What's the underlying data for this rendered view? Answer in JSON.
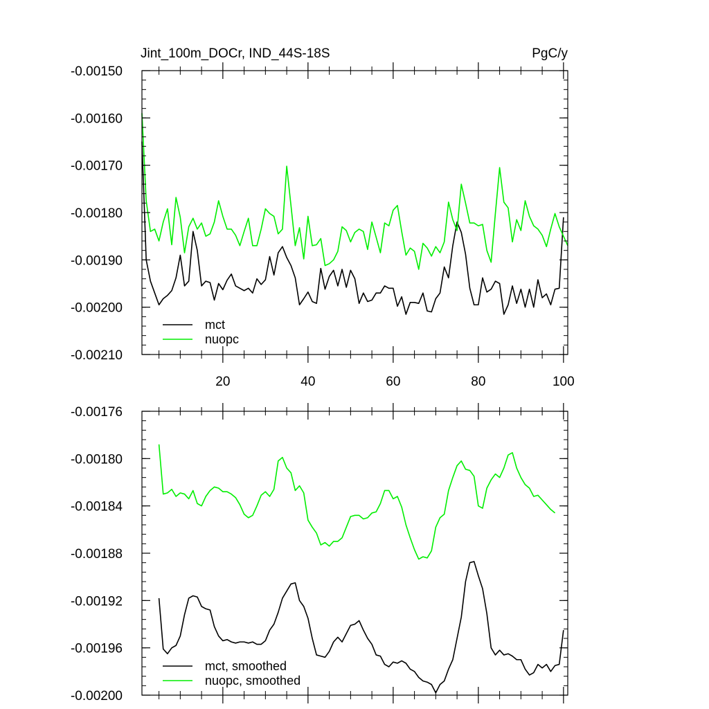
{
  "figure": {
    "title_left": "Jint_100m_DOCr, IND_44S-18S",
    "title_right": "PgC/y"
  },
  "chart_data": [
    {
      "type": "line",
      "title": "Jint_100m_DOCr, IND_44S-18S",
      "units": "PgC/y",
      "xlim": [
        1,
        101
      ],
      "ylim": [
        -0.0021,
        -0.0015
      ],
      "xticks": [
        20,
        40,
        60,
        80,
        100
      ],
      "xtick_labels": [
        "20",
        "40",
        "60",
        "80",
        "100"
      ],
      "yticks": [
        -0.0015,
        -0.0016,
        -0.0017,
        -0.0018,
        -0.0019,
        -0.002,
        -0.0021
      ],
      "ytick_labels": [
        "-0.00150",
        "-0.00160",
        "-0.00170",
        "-0.00180",
        "-0.00190",
        "-0.00200",
        "-0.00210"
      ],
      "grid": false,
      "legend_position": "bottom-left",
      "x_start": 1,
      "series": [
        {
          "name": "mct",
          "color": "#000000",
          "values": [
            -0.00165,
            -0.0019,
            -0.001945,
            -0.00197,
            -0.001995,
            -0.001982,
            -0.001975,
            -0.001965,
            -0.001938,
            -0.00189,
            -0.001955,
            -0.001945,
            -0.00184,
            -0.00188,
            -0.001955,
            -0.001945,
            -0.001948,
            -0.001985,
            -0.00195,
            -0.001963,
            -0.001943,
            -0.00193,
            -0.001955,
            -0.00196,
            -0.001965,
            -0.00196,
            -0.00197,
            -0.00194,
            -0.001952,
            -0.001942,
            -0.001893,
            -0.001932,
            -0.001885,
            -0.001872,
            -0.001895,
            -0.001912,
            -0.001938,
            -0.001995,
            -0.001982,
            -0.001968,
            -0.001988,
            -0.001992,
            -0.001918,
            -0.001962,
            -0.001935,
            -0.001922,
            -0.001955,
            -0.00192,
            -0.001958,
            -0.001922,
            -0.00194,
            -0.001992,
            -0.00197,
            -0.001988,
            -0.001985,
            -0.00197,
            -0.00197,
            -0.001955,
            -0.00196,
            -0.00196,
            -0.001998,
            -0.001978,
            -0.002015,
            -0.00199,
            -0.00199,
            -0.001992,
            -0.00197,
            -0.002008,
            -0.00201,
            -0.001982,
            -0.00197,
            -0.001915,
            -0.001938,
            -0.00187,
            -0.00182,
            -0.001842,
            -0.001888,
            -0.00196,
            -0.001995,
            -0.001995,
            -0.001938,
            -0.001968,
            -0.001962,
            -0.001945,
            -0.00195,
            -0.002015,
            -0.001995,
            -0.001955,
            -0.001992,
            -0.001962,
            -0.002,
            -0.001962,
            -0.002,
            -0.001942,
            -0.00198,
            -0.001972,
            -0.001995,
            -0.001962,
            -0.00196,
            -0.00181
          ]
        },
        {
          "name": "nuopc",
          "color": "#00ee00",
          "values": [
            -0.00159,
            -0.001775,
            -0.00184,
            -0.001835,
            -0.00186,
            -0.00182,
            -0.001792,
            -0.001868,
            -0.001768,
            -0.00181,
            -0.001885,
            -0.00183,
            -0.001812,
            -0.001835,
            -0.001822,
            -0.00185,
            -0.001845,
            -0.00182,
            -0.001775,
            -0.001808,
            -0.001835,
            -0.001835,
            -0.001848,
            -0.00187,
            -0.00184,
            -0.001812,
            -0.00187,
            -0.00187,
            -0.001835,
            -0.001792,
            -0.001802,
            -0.001808,
            -0.001845,
            -0.001835,
            -0.001702,
            -0.001785,
            -0.00187,
            -0.001832,
            -0.001898,
            -0.001808,
            -0.00187,
            -0.001868,
            -0.001855,
            -0.001912,
            -0.001908,
            -0.0019,
            -0.001882,
            -0.00183,
            -0.001838,
            -0.001862,
            -0.001842,
            -0.001835,
            -0.00184,
            -0.001878,
            -0.00182,
            -0.001852,
            -0.001885,
            -0.001822,
            -0.001828,
            -0.001795,
            -0.001785,
            -0.00184,
            -0.00189,
            -0.001875,
            -0.001882,
            -0.00192,
            -0.001865,
            -0.001875,
            -0.001892,
            -0.001872,
            -0.001885,
            -0.001862,
            -0.001778,
            -0.001815,
            -0.001838,
            -0.00174,
            -0.00178,
            -0.001822,
            -0.001822,
            -0.001828,
            -0.001825,
            -0.00188,
            -0.001905,
            -0.001802,
            -0.001705,
            -0.001778,
            -0.00179,
            -0.001862,
            -0.001815,
            -0.001838,
            -0.001775,
            -0.001808,
            -0.001828,
            -0.001835,
            -0.001848,
            -0.001872,
            -0.001835,
            -0.001802,
            -0.00183,
            -0.00185,
            -0.00187
          ]
        }
      ]
    },
    {
      "type": "line",
      "xlim": [
        1,
        101
      ],
      "ylim": [
        -0.002,
        -0.00176
      ],
      "xticks": [
        20,
        40,
        60,
        80,
        100
      ],
      "yticks": [
        -0.00176,
        -0.0018,
        -0.00184,
        -0.00188,
        -0.00192,
        -0.00196,
        -0.002
      ],
      "ytick_labels": [
        "-0.00176",
        "-0.00180",
        "-0.00184",
        "-0.00188",
        "-0.00192",
        "-0.00196",
        "-0.00200"
      ],
      "grid": false,
      "legend_position": "bottom-left",
      "x_start": 5,
      "series": [
        {
          "name": "mct, smoothed",
          "color": "#000000",
          "values": [
            -0.001918,
            -0.001961,
            -0.001965,
            -0.00196,
            -0.001958,
            -0.00195,
            -0.001932,
            -0.001918,
            -0.001916,
            -0.001917,
            -0.001925,
            -0.001927,
            -0.001928,
            -0.001942,
            -0.00195,
            -0.001954,
            -0.001953,
            -0.001955,
            -0.001956,
            -0.001955,
            -0.001955,
            -0.001956,
            -0.001955,
            -0.001957,
            -0.001957,
            -0.001954,
            -0.001945,
            -0.00194,
            -0.00193,
            -0.001918,
            -0.001912,
            -0.001906,
            -0.001905,
            -0.00192,
            -0.001925,
            -0.001935,
            -0.001952,
            -0.001966,
            -0.001967,
            -0.001968,
            -0.001963,
            -0.001955,
            -0.001951,
            -0.001955,
            -0.001948,
            -0.001941,
            -0.00194,
            -0.001937,
            -0.001945,
            -0.001952,
            -0.001957,
            -0.001966,
            -0.001967,
            -0.001974,
            -0.001976,
            -0.001972,
            -0.001973,
            -0.001971,
            -0.001973,
            -0.001978,
            -0.00198,
            -0.001985,
            -0.001988,
            -0.001989,
            -0.001991,
            -0.001998,
            -0.001991,
            -0.001988,
            -0.001978,
            -0.00197,
            -0.001952,
            -0.001934,
            -0.001904,
            -0.001888,
            -0.001887,
            -0.001899,
            -0.00191,
            -0.001931,
            -0.00196,
            -0.001966,
            -0.001962,
            -0.001966,
            -0.001965,
            -0.001967,
            -0.00197,
            -0.00197,
            -0.001978,
            -0.001983,
            -0.001981,
            -0.001974,
            -0.001977,
            -0.001974,
            -0.00198,
            -0.001975,
            -0.001974,
            -0.001945
          ]
        },
        {
          "name": "nuopc, smoothed",
          "color": "#00ee00",
          "values": [
            -0.001788,
            -0.00183,
            -0.001829,
            -0.001826,
            -0.001832,
            -0.001829,
            -0.00183,
            -0.001834,
            -0.001827,
            -0.001838,
            -0.00184,
            -0.001832,
            -0.001827,
            -0.001824,
            -0.001825,
            -0.001828,
            -0.001828,
            -0.00183,
            -0.001833,
            -0.001839,
            -0.001847,
            -0.00185,
            -0.001848,
            -0.00184,
            -0.001831,
            -0.001828,
            -0.001832,
            -0.001826,
            -0.001802,
            -0.001799,
            -0.001808,
            -0.001812,
            -0.001827,
            -0.001823,
            -0.001829,
            -0.001852,
            -0.001858,
            -0.001863,
            -0.001873,
            -0.001871,
            -0.001874,
            -0.00187,
            -0.00187,
            -0.001867,
            -0.001858,
            -0.001849,
            -0.001848,
            -0.001848,
            -0.001851,
            -0.00185,
            -0.001846,
            -0.001845,
            -0.001838,
            -0.001827,
            -0.001827,
            -0.001834,
            -0.001832,
            -0.001841,
            -0.001856,
            -0.001867,
            -0.001877,
            -0.001885,
            -0.001883,
            -0.001884,
            -0.001878,
            -0.001858,
            -0.00185,
            -0.001847,
            -0.001827,
            -0.001816,
            -0.001806,
            -0.001802,
            -0.001809,
            -0.00181,
            -0.001815,
            -0.00184,
            -0.001842,
            -0.001825,
            -0.001818,
            -0.001813,
            -0.001816,
            -0.001808,
            -0.001797,
            -0.001795,
            -0.001808,
            -0.001816,
            -0.001822,
            -0.001825,
            -0.001832,
            -0.001831,
            -0.001835,
            -0.001839,
            -0.001843,
            -0.001846
          ]
        }
      ]
    }
  ]
}
